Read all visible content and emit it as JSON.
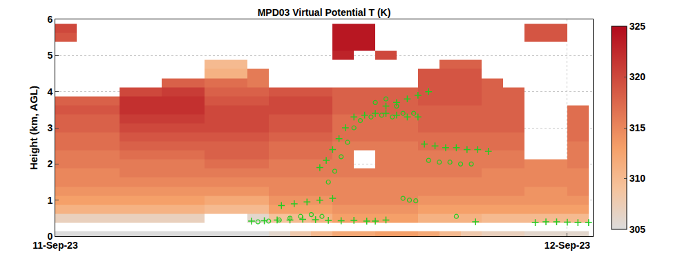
{
  "chart_data": {
    "type": "heatmap",
    "title": "MPD03 Virtual Potential T (K)",
    "ylabel": "Height (km, AGL)",
    "x": [
      0.5,
      1.5,
      2.5,
      3.5,
      4.5,
      5.5,
      6.5,
      7.5,
      8.5,
      9.5,
      10.5,
      11.5,
      12.5,
      13.5,
      14.5,
      15.5,
      16.5,
      17.5,
      18.5,
      19.5,
      20.5,
      21.5,
      22.5,
      23.5,
      24.5
    ],
    "y": [
      0.05,
      0.25,
      0.5,
      0.75,
      1.0,
      1.25,
      1.5,
      1.75,
      2.0,
      2.25,
      2.5,
      2.75,
      3.0,
      3.25,
      3.5,
      3.75,
      4.0,
      4.25,
      4.5,
      4.75,
      5.0,
      5.25,
      5.5,
      5.75
    ],
    "z": [
      [
        305,
        305,
        305,
        305,
        305,
        305,
        305,
        305,
        305,
        305,
        306,
        308,
        310,
        312,
        312,
        313,
        313,
        312,
        310,
        308,
        307,
        307,
        306,
        306,
        306
      ],
      [
        null,
        null,
        null,
        null,
        null,
        null,
        null,
        null,
        null,
        null,
        null,
        null,
        null,
        null,
        null,
        null,
        null,
        null,
        null,
        null,
        null,
        null,
        null,
        null,
        null
      ],
      [
        307,
        307,
        307,
        307,
        307,
        307,
        307,
        null,
        null,
        306,
        309,
        310,
        311,
        313,
        313,
        313,
        313,
        311,
        311,
        311,
        310,
        310,
        310,
        310,
        310
      ],
      [
        311,
        311,
        311,
        311,
        311,
        311,
        311,
        310,
        310,
        310,
        313,
        313,
        313,
        314,
        314,
        314,
        314,
        313,
        313,
        313,
        313,
        313,
        313,
        313,
        313
      ],
      [
        313,
        313,
        313,
        313,
        313,
        313,
        313,
        312,
        312,
        312,
        314,
        314,
        314,
        315,
        315,
        315,
        315,
        314,
        314,
        314,
        314,
        314,
        314,
        314,
        314
      ],
      [
        314,
        314,
        314,
        314,
        314,
        314,
        314,
        314,
        314,
        314,
        315,
        315,
        315,
        315,
        315,
        315,
        315,
        315,
        315,
        315,
        315,
        315,
        314,
        314,
        315
      ],
      [
        315,
        315,
        315,
        315,
        315,
        315,
        315,
        315,
        315,
        315,
        315,
        315,
        315,
        315,
        315,
        315,
        315,
        315,
        315,
        315,
        315,
        315,
        315,
        315,
        315
      ],
      [
        315,
        315,
        315,
        316,
        316,
        316,
        316,
        316,
        316,
        316,
        316,
        316,
        316,
        316,
        316,
        316,
        316,
        316,
        316,
        316,
        315,
        315,
        315,
        315,
        315
      ],
      [
        316,
        316,
        316,
        316,
        316,
        316,
        316,
        317,
        317,
        317,
        316,
        316,
        316,
        316,
        null,
        316,
        316,
        316,
        316,
        316,
        316,
        316,
        315,
        315,
        316
      ],
      [
        316,
        316,
        316,
        317,
        317,
        317,
        317,
        318,
        318,
        318,
        317,
        317,
        317,
        316,
        null,
        316,
        316,
        316,
        316,
        316,
        316,
        316,
        null,
        null,
        316
      ],
      [
        317,
        317,
        317,
        318,
        318,
        318,
        318,
        318,
        318,
        318,
        317,
        317,
        317,
        316,
        316,
        316,
        316,
        317,
        317,
        317,
        317,
        317,
        null,
        null,
        316
      ],
      [
        317,
        317,
        317,
        319,
        319,
        319,
        319,
        319,
        319,
        319,
        318,
        318,
        318,
        317,
        317,
        317,
        317,
        317,
        317,
        317,
        317,
        317,
        null,
        null,
        317
      ],
      [
        318,
        318,
        318,
        320,
        320,
        320,
        320,
        320,
        320,
        320,
        319,
        319,
        319,
        317,
        317,
        317,
        317,
        318,
        318,
        318,
        318,
        318,
        null,
        null,
        317
      ],
      [
        318,
        318,
        318,
        321,
        321,
        321,
        321,
        320,
        320,
        320,
        319,
        319,
        319,
        317,
        317,
        317,
        317,
        318,
        318,
        318,
        318,
        318,
        null,
        null,
        317
      ],
      [
        319,
        319,
        319,
        322,
        322,
        322,
        322,
        320,
        320,
        320,
        320,
        320,
        320,
        318,
        318,
        318,
        318,
        318,
        318,
        318,
        318,
        318,
        null,
        null,
        317
      ],
      [
        318,
        318,
        318,
        322,
        322,
        322,
        322,
        319,
        319,
        319,
        320,
        320,
        320,
        318,
        318,
        318,
        318,
        319,
        319,
        319,
        318,
        318,
        null,
        null,
        null
      ],
      [
        null,
        null,
        null,
        320,
        320,
        321,
        321,
        318,
        318,
        318,
        319,
        319,
        319,
        318,
        318,
        318,
        318,
        319,
        319,
        319,
        318,
        318,
        null,
        null,
        null
      ],
      [
        null,
        null,
        null,
        null,
        null,
        318,
        318,
        317,
        317,
        316,
        null,
        null,
        null,
        null,
        null,
        null,
        null,
        319,
        319,
        319,
        318,
        null,
        null,
        null,
        null
      ],
      [
        null,
        null,
        null,
        null,
        null,
        null,
        null,
        311,
        311,
        316,
        null,
        null,
        null,
        null,
        null,
        null,
        null,
        319,
        319,
        319,
        null,
        null,
        null,
        null,
        null
      ],
      [
        null,
        null,
        null,
        null,
        null,
        null,
        null,
        310,
        310,
        null,
        null,
        null,
        null,
        null,
        null,
        null,
        null,
        null,
        318,
        318,
        null,
        null,
        null,
        null,
        null
      ],
      [
        null,
        null,
        null,
        null,
        null,
        null,
        null,
        null,
        null,
        null,
        null,
        null,
        null,
        323,
        null,
        320,
        null,
        null,
        null,
        null,
        null,
        null,
        null,
        null,
        null
      ],
      [
        null,
        null,
        null,
        null,
        null,
        null,
        null,
        null,
        null,
        null,
        null,
        null,
        null,
        324,
        324,
        null,
        null,
        null,
        null,
        null,
        null,
        null,
        null,
        null,
        null
      ],
      [
        319,
        null,
        null,
        null,
        null,
        null,
        null,
        null,
        null,
        null,
        null,
        null,
        null,
        324,
        324,
        null,
        null,
        null,
        null,
        null,
        null,
        null,
        319,
        319,
        null
      ],
      [
        320,
        null,
        null,
        null,
        null,
        null,
        null,
        null,
        null,
        null,
        null,
        null,
        null,
        324,
        324,
        null,
        null,
        null,
        null,
        null,
        null,
        null,
        319,
        319,
        null
      ]
    ],
    "xlim": [
      0,
      25.2
    ],
    "xticks": [
      {
        "value": 0,
        "label": "11-Sep-23"
      },
      {
        "value": 24,
        "label": "12-Sep-23"
      }
    ],
    "ylim": [
      0,
      6
    ],
    "yticks": [
      0,
      1,
      2,
      3,
      4,
      5,
      6
    ],
    "zlim": [
      305,
      325
    ],
    "zticks": [
      305,
      310,
      315,
      320,
      325
    ],
    "grid": true,
    "series": [
      {
        "type": "scatter",
        "marker": "cross",
        "color": "#22cc22",
        "x": [
          9.2,
          9.8,
          10.4,
          11.0,
          11.6,
          12.2,
          12.8,
          13.4,
          14.0,
          14.6,
          10.6,
          11.2,
          11.8,
          12.4,
          13.0,
          12.4,
          12.7,
          13.0,
          13.3,
          13.6,
          14.0,
          14.5,
          15.0,
          15.5,
          16.0,
          16.5,
          17.0,
          15.5,
          16.0,
          16.5,
          17.0,
          17.5,
          17.3,
          17.8,
          18.3,
          18.8,
          19.3,
          19.8,
          20.3,
          15.0,
          15.5,
          19.7,
          22.5,
          23.0,
          23.5,
          24.0,
          24.5,
          25.0
        ],
        "y": [
          0.42,
          0.43,
          0.45,
          0.45,
          0.47,
          0.46,
          0.44,
          0.43,
          0.44,
          0.42,
          0.85,
          0.9,
          0.95,
          1.0,
          1.05,
          1.9,
          2.1,
          2.4,
          2.7,
          3.0,
          3.3,
          3.35,
          3.4,
          3.4,
          3.35,
          3.3,
          3.3,
          3.6,
          3.7,
          3.8,
          3.9,
          4.0,
          2.55,
          2.5,
          2.45,
          2.45,
          2.4,
          2.4,
          2.35,
          0.42,
          0.45,
          0.4,
          0.38,
          0.4,
          0.4,
          0.39,
          0.38,
          0.38
        ]
      },
      {
        "type": "scatter",
        "marker": "circle",
        "color": "#22cc22",
        "x": [
          9.5,
          10.0,
          10.5,
          11.0,
          11.5,
          12.0,
          12.5,
          12.8,
          13.1,
          13.4,
          13.7,
          14.0,
          14.3,
          14.8,
          15.3,
          15.8,
          16.3,
          16.8,
          15.0,
          15.5,
          16.0,
          16.3,
          16.6,
          16.9,
          17.5,
          18.0,
          18.5,
          19.0,
          19.5,
          18.8
        ],
        "y": [
          0.4,
          0.42,
          0.45,
          0.5,
          0.55,
          0.6,
          0.55,
          1.5,
          1.8,
          2.2,
          2.6,
          3.0,
          3.2,
          3.3,
          3.35,
          3.3,
          3.4,
          3.4,
          3.7,
          3.8,
          3.6,
          1.05,
          1.0,
          0.98,
          2.1,
          2.05,
          2.05,
          2.0,
          2.0,
          0.55
        ]
      }
    ]
  }
}
